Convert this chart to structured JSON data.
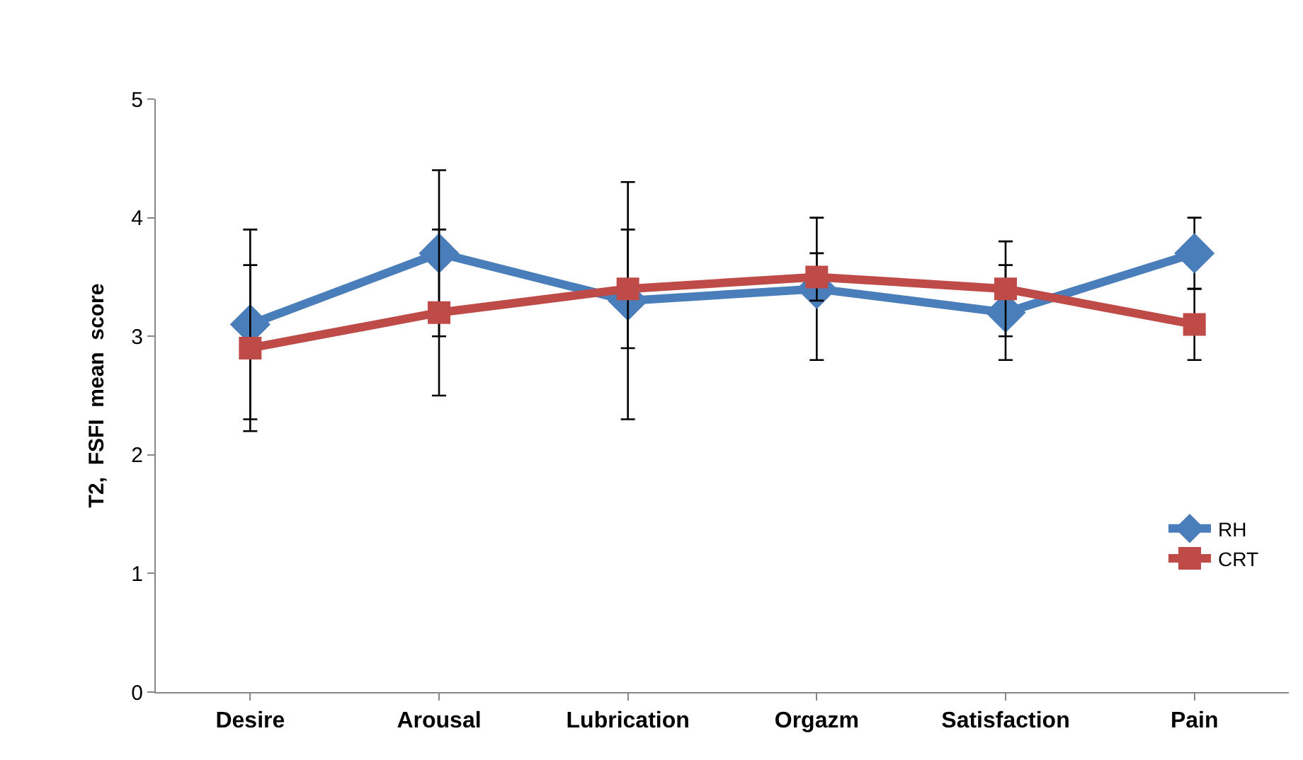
{
  "chart_data": {
    "type": "line",
    "ylabel": "T2,  FSFI  mean  score",
    "categories": [
      "Desire",
      "Arousal",
      "Lubrication",
      "Orgazm",
      "Satisfaction",
      "Pain"
    ],
    "series": [
      {
        "name": "RH",
        "color": "#4a7ebb",
        "marker": "diamond",
        "values": [
          3.1,
          3.7,
          3.3,
          3.4,
          3.2,
          3.7
        ],
        "errors": [
          0.8,
          0.7,
          1.0,
          0.6,
          0.4,
          0.3
        ]
      },
      {
        "name": "CRT",
        "color": "#be4b48",
        "marker": "square",
        "values": [
          2.9,
          3.2,
          3.4,
          3.5,
          3.4,
          3.1
        ],
        "errors": [
          0.7,
          0.7,
          0.5,
          0.2,
          0.4,
          0.3
        ]
      }
    ],
    "ylim": [
      0,
      5
    ],
    "yticks": [
      0,
      1,
      2,
      3,
      4,
      5
    ],
    "legend": "bottom right",
    "line_style": "solid"
  }
}
